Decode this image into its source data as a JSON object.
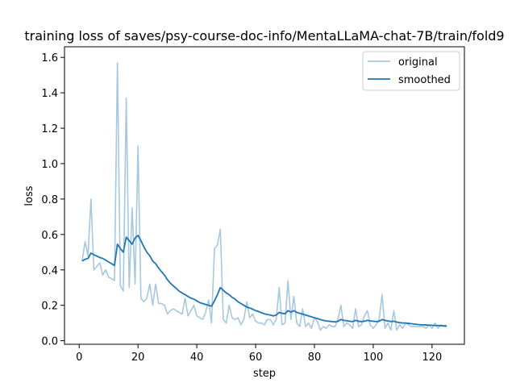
{
  "chart_data": {
    "type": "line",
    "title": "training loss of saves/psy-course-doc-info/MentaLLaMA-chat-7B/train/fold9",
    "xlabel": "step",
    "ylabel": "loss",
    "xlim": [
      -5,
      131
    ],
    "ylim": [
      -0.02,
      1.66
    ],
    "xticks": [
      0,
      20,
      40,
      60,
      80,
      100,
      120
    ],
    "yticks": [
      0.0,
      0.2,
      0.4,
      0.6,
      0.8,
      1.0,
      1.2,
      1.4,
      1.6
    ],
    "xtick_labels": [
      "0",
      "20",
      "40",
      "60",
      "80",
      "100",
      "120"
    ],
    "ytick_labels": [
      "0.0",
      "0.2",
      "0.4",
      "0.6",
      "0.8",
      "1.0",
      "1.2",
      "1.4",
      "1.6"
    ],
    "legend_position": "upper-right",
    "legend": [
      "original",
      "smoothed"
    ],
    "colors": {
      "original": "#a6c8e0",
      "smoothed": "#1f77b4"
    },
    "series": [
      {
        "name": "original",
        "x": [
          1,
          2,
          3,
          4,
          5,
          6,
          7,
          8,
          9,
          10,
          11,
          12,
          13,
          14,
          15,
          16,
          17,
          18,
          19,
          20,
          21,
          22,
          23,
          24,
          25,
          26,
          27,
          28,
          29,
          30,
          31,
          32,
          33,
          34,
          35,
          36,
          37,
          38,
          39,
          40,
          41,
          42,
          43,
          44,
          45,
          46,
          47,
          48,
          49,
          50,
          51,
          52,
          53,
          54,
          55,
          56,
          57,
          58,
          59,
          60,
          61,
          62,
          63,
          64,
          65,
          66,
          67,
          68,
          69,
          70,
          71,
          72,
          73,
          74,
          75,
          76,
          77,
          78,
          79,
          80,
          81,
          82,
          83,
          84,
          85,
          86,
          87,
          88,
          89,
          90,
          91,
          92,
          93,
          94,
          95,
          96,
          97,
          98,
          99,
          100,
          101,
          102,
          103,
          104,
          105,
          106,
          107,
          108,
          109,
          110,
          111,
          112,
          113,
          114,
          115,
          116,
          117,
          118,
          119,
          120,
          121,
          122,
          123,
          124,
          125
        ],
        "values": [
          0.45,
          0.56,
          0.48,
          0.8,
          0.4,
          0.42,
          0.44,
          0.37,
          0.4,
          0.36,
          0.35,
          0.34,
          1.57,
          0.31,
          0.28,
          1.37,
          0.3,
          0.75,
          0.32,
          1.1,
          0.24,
          0.22,
          0.24,
          0.32,
          0.2,
          0.32,
          0.21,
          0.21,
          0.2,
          0.15,
          0.17,
          0.18,
          0.17,
          0.16,
          0.15,
          0.24,
          0.14,
          0.17,
          0.2,
          0.14,
          0.13,
          0.12,
          0.16,
          0.23,
          0.1,
          0.52,
          0.54,
          0.63,
          0.12,
          0.1,
          0.2,
          0.13,
          0.12,
          0.13,
          0.09,
          0.12,
          0.22,
          0.13,
          0.15,
          0.11,
          0.1,
          0.1,
          0.09,
          0.12,
          0.12,
          0.09,
          0.12,
          0.3,
          0.09,
          0.1,
          0.34,
          0.12,
          0.25,
          0.1,
          0.08,
          0.18,
          0.08,
          0.1,
          0.07,
          0.13,
          0.11,
          0.06,
          0.08,
          0.07,
          0.09,
          0.08,
          0.08,
          0.12,
          0.2,
          0.08,
          0.1,
          0.09,
          0.07,
          0.18,
          0.08,
          0.09,
          0.14,
          0.17,
          0.09,
          0.07,
          0.09,
          0.12,
          0.26,
          0.07,
          0.1,
          0.06,
          0.17,
          0.06,
          0.09,
          0.07,
          0.1,
          0.09,
          0.08,
          0.08,
          0.08,
          0.08,
          0.08,
          0.07,
          0.09,
          0.07,
          0.1,
          0.07,
          0.09,
          0.08,
          0.08
        ]
      },
      {
        "name": "smoothed",
        "x": [
          1,
          2,
          3,
          4,
          5,
          6,
          7,
          8,
          9,
          10,
          11,
          12,
          13,
          14,
          15,
          16,
          17,
          18,
          19,
          20,
          21,
          22,
          23,
          24,
          25,
          26,
          27,
          28,
          29,
          30,
          31,
          32,
          33,
          34,
          35,
          36,
          37,
          38,
          39,
          40,
          41,
          42,
          43,
          44,
          45,
          46,
          47,
          48,
          49,
          50,
          51,
          52,
          53,
          54,
          55,
          56,
          57,
          58,
          59,
          60,
          61,
          62,
          63,
          64,
          65,
          66,
          67,
          68,
          69,
          70,
          71,
          72,
          73,
          74,
          75,
          76,
          77,
          78,
          79,
          80,
          81,
          82,
          83,
          84,
          85,
          86,
          87,
          88,
          89,
          90,
          91,
          92,
          93,
          94,
          95,
          96,
          97,
          98,
          99,
          100,
          101,
          102,
          103,
          104,
          105,
          106,
          107,
          108,
          109,
          110,
          111,
          112,
          113,
          114,
          115,
          116,
          117,
          118,
          119,
          120,
          121,
          122,
          123,
          124,
          125
        ],
        "values": [
          0.45,
          0.46,
          0.465,
          0.495,
          0.485,
          0.478,
          0.47,
          0.465,
          0.455,
          0.445,
          0.435,
          0.425,
          0.545,
          0.52,
          0.5,
          0.585,
          0.565,
          0.545,
          0.58,
          0.595,
          0.565,
          0.53,
          0.5,
          0.48,
          0.45,
          0.435,
          0.41,
          0.39,
          0.37,
          0.345,
          0.325,
          0.31,
          0.295,
          0.28,
          0.27,
          0.26,
          0.25,
          0.24,
          0.235,
          0.225,
          0.215,
          0.21,
          0.205,
          0.2,
          0.195,
          0.225,
          0.26,
          0.3,
          0.285,
          0.27,
          0.26,
          0.245,
          0.235,
          0.22,
          0.21,
          0.2,
          0.19,
          0.185,
          0.178,
          0.17,
          0.165,
          0.158,
          0.152,
          0.148,
          0.145,
          0.14,
          0.145,
          0.16,
          0.155,
          0.152,
          0.17,
          0.162,
          0.17,
          0.16,
          0.155,
          0.15,
          0.145,
          0.14,
          0.135,
          0.13,
          0.125,
          0.12,
          0.115,
          0.112,
          0.11,
          0.108,
          0.106,
          0.11,
          0.12,
          0.115,
          0.113,
          0.11,
          0.108,
          0.115,
          0.11,
          0.108,
          0.11,
          0.115,
          0.112,
          0.11,
          0.108,
          0.11,
          0.12,
          0.115,
          0.112,
          0.108,
          0.11,
          0.105,
          0.102,
          0.1,
          0.1,
          0.098,
          0.096,
          0.094,
          0.092,
          0.09,
          0.09,
          0.089,
          0.088,
          0.087,
          0.086,
          0.086,
          0.085,
          0.084,
          0.084
        ]
      }
    ]
  }
}
